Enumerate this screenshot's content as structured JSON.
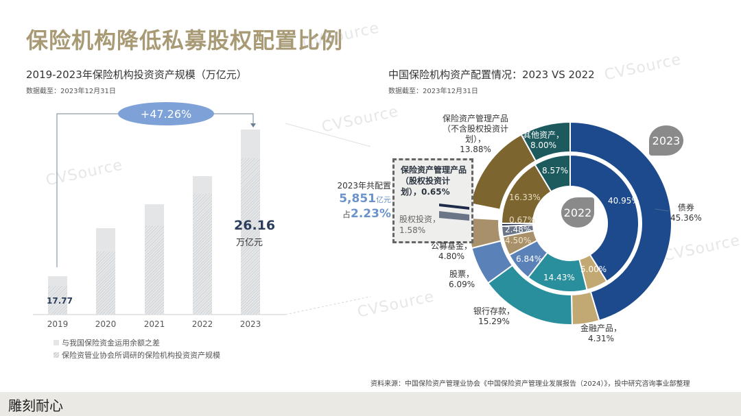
{
  "page": {
    "title": "保险机构降低私募股权配置比例",
    "source": "资料来源：中国保险资产管理业协会《中国保险资产管理业发展报告（2024）》，投中研究咨询事业部整理",
    "footer_logo": "雕刻耐心",
    "watermark": "CVSource"
  },
  "left_chart": {
    "title": "2019-2023年保险机构投资资产规模（万亿元）",
    "note": "数据截至：2023年12月31日",
    "growth_label": "+47.26%",
    "first_value": "17.77",
    "last_value": "26.16",
    "last_unit": "万亿元",
    "legend": [
      {
        "label": "与我国保险资金运用余额之差"
      },
      {
        "label": "保险资管业协会所调研的保险机构投资资产规模"
      }
    ]
  },
  "right_chart": {
    "title": "中国保险机构资产配置情况：2023 VS 2022",
    "note": "数据截至：2023年12月31日",
    "badge_2023": "2023",
    "badge_2022": "2022",
    "callout": {
      "line1": "2023年共配置",
      "amount": "5,851",
      "amount_unit": "亿元",
      "share_prefix": "占",
      "share": "2.23%"
    },
    "box": {
      "title": "保险资产管理产品（股权投资计划），0.65%",
      "equity": "股权投资，",
      "equity_value": "1.58%"
    }
  },
  "chart_data": [
    {
      "type": "bar",
      "title": "2019-2023年保险机构投资资产规模（万亿元）",
      "categories": [
        "2019",
        "2020",
        "2021",
        "2022",
        "2023"
      ],
      "series": [
        {
          "name": "保险资管业协会所调研的保险机构投资资产规模",
          "values": [
            17.77,
            20.6,
            22.9,
            24.9,
            26.16
          ]
        },
        {
          "name": "与我国保险资金运用余额之差",
          "values": [
            1.7,
            1.8,
            1.8,
            1.5,
            1.6
          ]
        }
      ],
      "annotations": [
        "+47.26%",
        "17.77",
        "26.16 万亿元"
      ],
      "xlabel": "",
      "ylabel": "万亿元",
      "stacked": true
    },
    {
      "type": "pie",
      "title": "中国保险机构资产配置情况：2023 VS 2022",
      "series": [
        {
          "name": "2023",
          "labels": [
            "债券",
            "金融产品",
            "银行存款",
            "股票",
            "公募基金",
            "股权投资",
            "保险资产管理产品（股权投资计划）",
            "保险资产管理产品（不含股权投资计划）",
            "其他资产"
          ],
          "values": [
            45.36,
            4.31,
            15.29,
            6.09,
            4.8,
            1.58,
            0.65,
            13.88,
            8.0
          ]
        },
        {
          "name": "2022",
          "labels": [
            "债券",
            "金融产品",
            "银行存款",
            "股票",
            "公募基金",
            "股权投资",
            "保险资产管理产品（股权投资计划）",
            "保险资产管理产品（不含股权投资计划）",
            "其他资产"
          ],
          "values": [
            40.95,
            5.0,
            14.43,
            6.84,
            4.5,
            2.48,
            0.67,
            16.33,
            8.57
          ]
        }
      ],
      "outer_labels": [
        {
          "text": "债券",
          "value": "45.36%"
        },
        {
          "text": "金融产品，",
          "value": "4.31%"
        },
        {
          "text": "银行存款，",
          "value": "15.29%"
        },
        {
          "text": "股票，",
          "value": "6.09%"
        },
        {
          "text": "公募基金，",
          "value": "4.80%"
        },
        {
          "text": "保险资产管理产品（不含股权投资计划），",
          "value": "13.88%"
        },
        {
          "text": "其他资产，",
          "value": "8.00%"
        }
      ],
      "colors": [
        "#1d4a8c",
        "#c2a873",
        "#2a8f9c",
        "#5a82b8",
        "#a8916a",
        "#6a7588",
        "#1e2a48",
        "#7d6530",
        "#1d5a5e"
      ]
    }
  ]
}
